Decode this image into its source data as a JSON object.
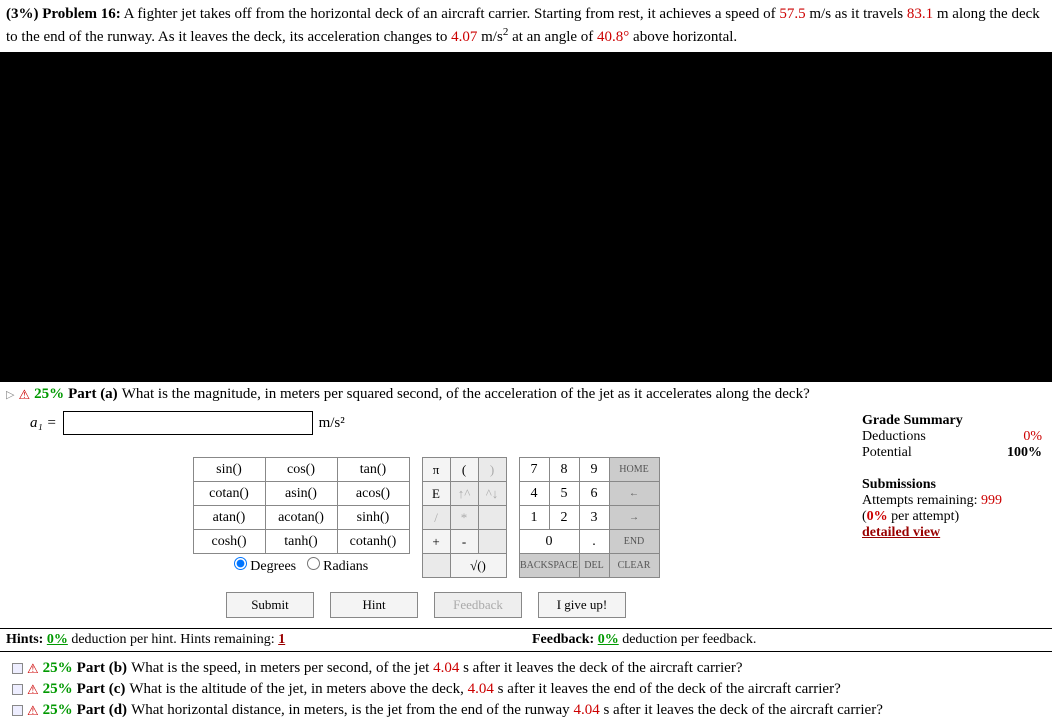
{
  "problem": {
    "weight": "(3%)",
    "title": "Problem 16:",
    "text_pre": "A fighter jet takes off from the horizontal deck of an aircraft carrier. Starting from rest, it achieves a speed of ",
    "v": "57.5",
    "v_unit": " m/s as it travels ",
    "d": "83.1",
    "d_unit": " m along the deck to the end of the runway. As it leaves the deck, its acceleration changes to ",
    "a": "4.07",
    "a_unit": " m/s",
    "a_unit2": " at an angle of ",
    "ang": "40.8°",
    "ang_unit": " above horizontal."
  },
  "partA": {
    "pct": "25%",
    "label": "Part (a)",
    "text": "What is the magnitude, in meters per squared second, of the acceleration of the jet as it accelerates along the deck?"
  },
  "answer": {
    "label": "a₁ =",
    "unit": "m/s²",
    "value": ""
  },
  "funcs": {
    "r1": [
      "sin()",
      "cos()",
      "tan()"
    ],
    "r2": [
      "cotan()",
      "asin()",
      "acos()"
    ],
    "r3": [
      "atan()",
      "acotan()",
      "sinh()"
    ],
    "r4": [
      "cosh()",
      "tanh()",
      "cotanh()"
    ],
    "modeD": "Degrees",
    "modeR": "Radians"
  },
  "syms": {
    "r1": [
      "π",
      "(",
      ")"
    ],
    "r2": [
      "E",
      "↑^",
      "^↓"
    ],
    "r3": [
      "/",
      "*"
    ],
    "r4": [
      "+",
      "-"
    ],
    "r5": [
      "√()"
    ]
  },
  "nums": {
    "r1": [
      "7",
      "8",
      "9"
    ],
    "n1": "HOME",
    "r2": [
      "4",
      "5",
      "6"
    ],
    "n2": "←",
    "r3": [
      "1",
      "2",
      "3"
    ],
    "n3": "→",
    "r4": [
      "0",
      "."
    ],
    "n4": "END",
    "r5a": "BACKSPACE",
    "r5b": "DEL",
    "r5c": "CLEAR"
  },
  "actions": {
    "submit": "Submit",
    "hint": "Hint",
    "feedback": "Feedback",
    "giveup": "I give up!"
  },
  "hints": {
    "hlabel": "Hints:",
    "hpct": "0%",
    "htext": " deduction per hint. Hints remaining: ",
    "hrem": "1",
    "flabel": "Feedback:",
    "fpct": "0%",
    "ftext": " deduction per feedback."
  },
  "grade": {
    "title": "Grade Summary",
    "ded": "Deductions",
    "dedv": "0%",
    "pot": "Potential",
    "potv": "100%",
    "sub": "Submissions",
    "att": "Attempts remaining: ",
    "attv": "999",
    "per": "(",
    "perv": "0%",
    "per2": " per attempt)",
    "det": "detailed view"
  },
  "parts": {
    "b": {
      "pct": "25%",
      "label": "Part (b)",
      "pre": "What is the speed, in meters per second, of the jet ",
      "t": "4.04",
      "unit": " s",
      "post": " after it leaves the deck of the aircraft carrier?"
    },
    "c": {
      "pct": "25%",
      "label": "Part (c)",
      "pre": "What is the altitude of the jet, in meters above the deck, ",
      "t": "4.04",
      "unit": " s",
      "post": " after it leaves the end of the deck of the aircraft carrier?"
    },
    "d": {
      "pct": "25%",
      "label": "Part (d)",
      "pre": "What horizontal distance, in meters, is the jet from the end of the runway ",
      "t": "4.04",
      "unit": " s",
      "post": " after it leaves the deck of the aircraft carrier?"
    }
  }
}
